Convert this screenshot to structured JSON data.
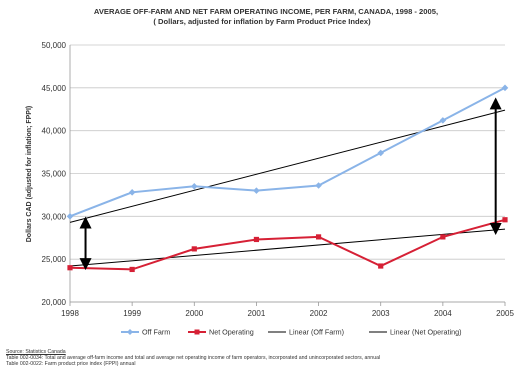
{
  "chart_data": {
    "type": "line",
    "title": "AVERAGE OFF-FARM AND NET FARM OPERATING INCOME, PER FARM,  CANADA, 1998 - 2005,",
    "subtitle": "( Dollars, adjusted for inflation by Farm Product Price Index)",
    "ylabel": "Dollars CAD (adjusted for inflation; FPPI)",
    "xlabel": "",
    "x": [
      1998,
      1999,
      2000,
      2001,
      2002,
      2003,
      2004,
      2005
    ],
    "x_tick_labels": [
      "1998",
      "1999",
      "2000",
      "2001",
      "2002",
      "2003",
      "2004",
      "2005"
    ],
    "ylim": [
      20000,
      50000
    ],
    "y_ticks": [
      20000,
      25000,
      30000,
      35000,
      40000,
      45000,
      50000
    ],
    "y_tick_labels": [
      "20,000",
      "25,000",
      "30,000",
      "35,000",
      "40,000",
      "45,000",
      "50,000"
    ],
    "grid": "horizontal",
    "legend_position": "bottom",
    "series": [
      {
        "name": "Off Farm",
        "color": "#8ab4e8",
        "marker": "diamond",
        "values": [
          30000,
          32800,
          33500,
          33000,
          33600,
          37400,
          41200,
          45000
        ]
      },
      {
        "name": "Net Operating",
        "color": "#d62035",
        "marker": "square",
        "values": [
          24000,
          23800,
          26200,
          27300,
          27600,
          24200,
          27600,
          29600
        ]
      }
    ],
    "trendlines": [
      {
        "name": "Linear (Off Farm)",
        "color": "#000000",
        "start": [
          1998,
          29300
        ],
        "end": [
          2005,
          42400
        ]
      },
      {
        "name": "Linear (Net Operating)",
        "color": "#000000",
        "start": [
          1998,
          24200
        ],
        "end": [
          2005,
          28500
        ]
      }
    ],
    "annotations": [
      {
        "type": "double-arrow",
        "x": 1998.25,
        "y_from": 24000,
        "y_to": 29700
      },
      {
        "type": "double-arrow",
        "x": 2004.85,
        "y_from": 28100,
        "y_to": 43600
      }
    ]
  },
  "source": {
    "label": "Source:  Statistics Canada",
    "lines": [
      "Table 002-0034:  Total and average off-farm income and total and average net operating income of farm operators, incorporated and unincorporated sectors, annual",
      "Table 002-0022: Farm product price index (FPPI) annual"
    ]
  }
}
